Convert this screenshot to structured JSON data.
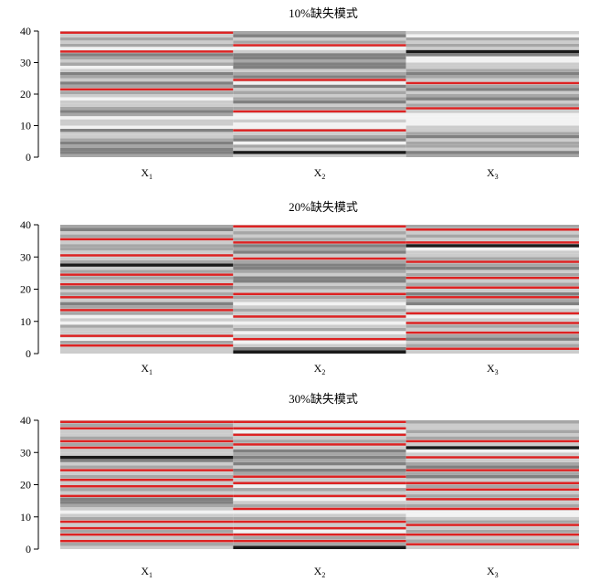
{
  "colors": {
    "missing": "#dd2222",
    "gray_ramp": [
      "#1a1a1a",
      "#808080",
      "#a6a6a6",
      "#cccccc",
      "#f2f2f2"
    ]
  },
  "chart_data": [
    {
      "type": "heatmap",
      "title": "10%缺失模式",
      "ylim": [
        0,
        40
      ],
      "yticks": [
        0,
        10,
        20,
        30,
        40
      ],
      "columns": [
        {
          "label": "X",
          "sub": "1",
          "levels": [
            2,
            1,
            1,
            2,
            1,
            2,
            3,
            3,
            1,
            4,
            3,
            3,
            4,
            2,
            1,
            2,
            3,
            3,
            4,
            3,
            2,
            -1,
            2,
            1,
            3,
            2,
            1,
            3,
            4,
            2,
            3,
            2,
            1,
            -1,
            4,
            2,
            3,
            2,
            3,
            -1
          ]
        },
        {
          "label": "X",
          "sub": "2",
          "levels": [
            3,
            0,
            3,
            2,
            4,
            1,
            2,
            3,
            -1,
            4,
            4,
            3,
            4,
            4,
            -1,
            2,
            3,
            1,
            2,
            3,
            2,
            3,
            1,
            4,
            -1,
            1,
            2,
            3,
            1,
            1,
            2,
            1,
            1,
            3,
            4,
            -1,
            2,
            3,
            1,
            2
          ]
        },
        {
          "label": "X",
          "sub": "3",
          "levels": [
            2,
            1,
            3,
            2,
            2,
            3,
            1,
            2,
            3,
            3,
            4,
            4,
            4,
            4,
            3,
            -1,
            2,
            3,
            1,
            2,
            3,
            1,
            2,
            -1,
            3,
            2,
            1,
            2,
            3,
            3,
            4,
            4,
            1,
            0,
            3,
            2,
            3,
            2,
            4,
            3
          ]
        }
      ]
    },
    {
      "type": "heatmap",
      "title": "20%缺失模式",
      "ylim": [
        0,
        40
      ],
      "yticks": [
        0,
        10,
        20,
        30,
        40
      ],
      "columns": [
        {
          "label": "X",
          "sub": "1",
          "levels": [
            3,
            3,
            -1,
            2,
            4,
            -1,
            3,
            3,
            2,
            4,
            3,
            4,
            2,
            -1,
            2,
            1,
            3,
            -1,
            2,
            3,
            1,
            -1,
            3,
            2,
            -1,
            2,
            3,
            0,
            2,
            3,
            -1,
            3,
            2,
            2,
            3,
            -1,
            2,
            3,
            1,
            2
          ]
        },
        {
          "label": "X",
          "sub": "2",
          "levels": [
            0,
            1,
            3,
            4,
            -1,
            3,
            4,
            2,
            3,
            4,
            3,
            -1,
            3,
            2,
            3,
            4,
            3,
            2,
            -1,
            3,
            2,
            3,
            1,
            1,
            3,
            2,
            1,
            1,
            2,
            -1,
            3,
            1,
            2,
            1,
            -1,
            2,
            3,
            2,
            3,
            -1
          ]
        },
        {
          "label": "X",
          "sub": "3",
          "levels": [
            3,
            -1,
            2,
            3,
            1,
            2,
            -1,
            3,
            2,
            -1,
            3,
            4,
            -1,
            3,
            4,
            1,
            2,
            -1,
            1,
            3,
            -1,
            2,
            3,
            -1,
            2,
            3,
            1,
            2,
            -1,
            2,
            3,
            3,
            4,
            0,
            -1,
            3,
            2,
            3,
            -1,
            2
          ]
        }
      ]
    },
    {
      "type": "heatmap",
      "title": "30%缺失模式",
      "ylim": [
        0,
        40
      ],
      "yticks": [
        0,
        10,
        20,
        30,
        40
      ],
      "columns": [
        {
          "label": "X",
          "sub": "1",
          "levels": [
            3,
            2,
            -1,
            3,
            -1,
            2,
            -1,
            3,
            -1,
            2,
            3,
            4,
            3,
            2,
            1,
            1,
            -1,
            3,
            2,
            -1,
            3,
            -1,
            2,
            3,
            -1,
            2,
            3,
            1,
            0,
            3,
            3,
            -1,
            2,
            -1,
            2,
            3,
            3,
            -1,
            2,
            -1
          ]
        },
        {
          "label": "X",
          "sub": "2",
          "levels": [
            0,
            2,
            -1,
            2,
            -1,
            4,
            -1,
            3,
            -1,
            2,
            3,
            4,
            -1,
            2,
            3,
            4,
            -1,
            3,
            2,
            4,
            -1,
            3,
            -1,
            2,
            1,
            3,
            1,
            2,
            1,
            2,
            1,
            3,
            -1,
            2,
            3,
            -1,
            4,
            -1,
            3,
            -1
          ]
        },
        {
          "label": "X",
          "sub": "3",
          "levels": [
            3,
            -1,
            2,
            3,
            -1,
            2,
            3,
            -1,
            2,
            3,
            4,
            4,
            -1,
            2,
            3,
            -1,
            2,
            3,
            -1,
            2,
            -1,
            3,
            1,
            2,
            -1,
            1,
            2,
            3,
            -1,
            3,
            4,
            0,
            3,
            -1,
            2,
            3,
            2,
            3,
            3,
            2
          ]
        }
      ]
    }
  ]
}
